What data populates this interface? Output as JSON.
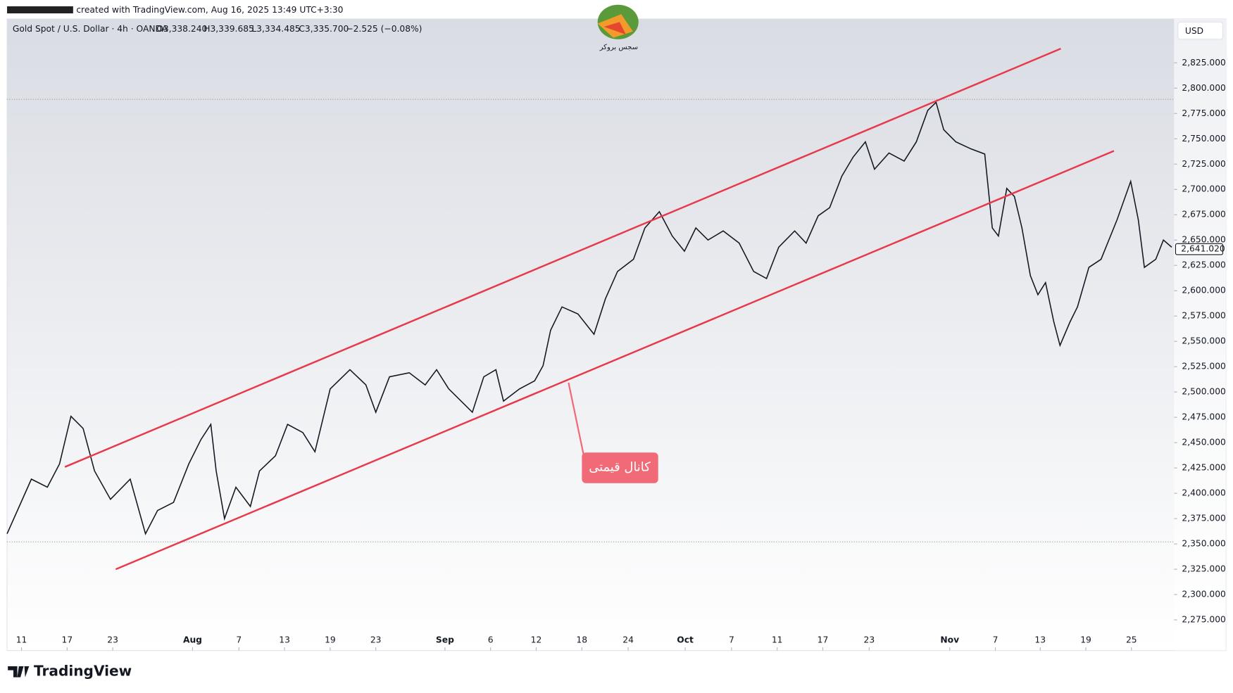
{
  "header": {
    "created": "created with TradingView.com, Aug 16, 2025 13:49 UTC+3:30",
    "brand": "TradingView",
    "logo_text": "سجس بروکر"
  },
  "chart_data": {
    "type": "line",
    "symbol": "Gold Spot / U.S. Dollar · 4h · OANDA",
    "ohlc": [
      "O3,338.240",
      "H3,339.685",
      "L3,334.485",
      "C3,335.700",
      "−2.525 (−0.08%)"
    ],
    "currency": "USD",
    "annotation": "کانال قیمتی",
    "xlim": [
      -1.9,
      151.6
    ],
    "ylim": [
      2244.7,
      2868.4
    ],
    "xticks": [
      {
        "value": 0,
        "label": "11"
      },
      {
        "value": 6,
        "label": "17"
      },
      {
        "value": 12,
        "label": "23"
      },
      {
        "value": 22.5,
        "label": "Aug"
      },
      {
        "value": 28.6,
        "label": "7"
      },
      {
        "value": 34.6,
        "label": "13"
      },
      {
        "value": 40.6,
        "label": "19"
      },
      {
        "value": 46.6,
        "label": "23"
      },
      {
        "value": 55.7,
        "label": "Sep"
      },
      {
        "value": 61.7,
        "label": "6"
      },
      {
        "value": 67.7,
        "label": "12"
      },
      {
        "value": 73.7,
        "label": "18"
      },
      {
        "value": 79.8,
        "label": "24"
      },
      {
        "value": 87.3,
        "label": "Oct"
      },
      {
        "value": 93.4,
        "label": "7"
      },
      {
        "value": 99.4,
        "label": "11"
      },
      {
        "value": 105.4,
        "label": "17"
      },
      {
        "value": 111.5,
        "label": "23"
      },
      {
        "value": 122.1,
        "label": "Nov"
      },
      {
        "value": 128.1,
        "label": "7"
      },
      {
        "value": 134,
        "label": "13"
      },
      {
        "value": 140,
        "label": "19"
      },
      {
        "value": 146,
        "label": "25"
      }
    ],
    "yticks": [
      {
        "value": 2275,
        "label": "2,275.000"
      },
      {
        "value": 2300,
        "label": "2,300.000"
      },
      {
        "value": 2325,
        "label": "2,325.000"
      },
      {
        "value": 2350,
        "label": "2,350.000"
      },
      {
        "value": 2375,
        "label": "2,375.000"
      },
      {
        "value": 2400,
        "label": "2,400.000"
      },
      {
        "value": 2425,
        "label": "2,425.000"
      },
      {
        "value": 2450,
        "label": "2,450.000"
      },
      {
        "value": 2475,
        "label": "2,475.000"
      },
      {
        "value": 2500,
        "label": "2,500.000"
      },
      {
        "value": 2525,
        "label": "2,525.000"
      },
      {
        "value": 2550,
        "label": "2,550.000"
      },
      {
        "value": 2575,
        "label": "2,575.000"
      },
      {
        "value": 2600,
        "label": "2,600.000"
      },
      {
        "value": 2625,
        "label": "2,625.000"
      },
      {
        "value": 2650,
        "label": "2,650.000"
      },
      {
        "value": 2675,
        "label": "2,675.000"
      },
      {
        "value": 2700,
        "label": "2,700.000"
      },
      {
        "value": 2725,
        "label": "2,725.000"
      },
      {
        "value": 2750,
        "label": "2,750.000"
      },
      {
        "value": 2775,
        "label": "2,775.000"
      },
      {
        "value": 2800,
        "label": "2,800.000"
      },
      {
        "value": 2825,
        "label": "2,825.000"
      }
    ],
    "last_price": {
      "value": 2641.02,
      "label": "2,641.020"
    },
    "series": [
      {
        "color": "#131722",
        "x": [
          -1.9,
          1.3,
          3.4,
          5.0,
          6.5,
          8.1,
          9.6,
          11.7,
          14.3,
          16.3,
          17.9,
          20.0,
          22.0,
          23.6,
          24.9,
          25.6,
          26.7,
          28.2,
          30.1,
          31.3,
          33.4,
          35.0,
          37.0,
          38.6,
          40.6,
          43.2,
          45.3,
          46.6,
          48.4,
          51.0,
          53.1,
          54.6,
          56.2,
          59.3,
          60.8,
          62.4,
          63.4,
          65.5,
          67.5,
          68.6,
          69.6,
          71.1,
          73.2,
          75.3,
          76.8,
          78.4,
          80.5,
          82.0,
          83.9,
          85.6,
          87.2,
          88.7,
          90.3,
          92.3,
          94.4,
          96.3,
          98.0,
          99.6,
          101.7,
          103.2,
          104.8,
          106.3,
          107.9,
          109.4,
          111.0,
          112.2,
          114.1,
          116.1,
          117.7,
          119.2,
          120.3,
          121.3,
          122.9,
          124.9,
          126.7,
          127.7,
          128.5,
          129.6,
          130.6,
          131.6,
          132.7,
          133.7,
          134.7,
          135.8,
          136.6,
          137.9,
          138.9,
          140.4,
          142.0,
          144.1,
          145.9,
          146.9,
          147.7,
          149.2,
          150.2,
          151.3
        ],
        "values": [
          2360,
          2414,
          2406,
          2429,
          2476,
          2464,
          2422,
          2394,
          2414,
          2360,
          2383,
          2391,
          2429,
          2453,
          2468,
          2422,
          2375,
          2406,
          2387,
          2422,
          2437,
          2468,
          2460,
          2441,
          2503,
          2522,
          2507,
          2480,
          2515,
          2519,
          2507,
          2522,
          2503,
          2480,
          2515,
          2522,
          2491,
          2503,
          2511,
          2526,
          2561,
          2584,
          2577,
          2557,
          2592,
          2619,
          2631,
          2662,
          2678,
          2654,
          2639,
          2662,
          2650,
          2659,
          2647,
          2619,
          2612,
          2643,
          2659,
          2647,
          2674,
          2682,
          2713,
          2732,
          2747,
          2720,
          2736,
          2728,
          2747,
          2778,
          2786,
          2759,
          2747,
          2740,
          2735,
          2662,
          2654,
          2701,
          2693,
          2662,
          2615,
          2596,
          2608,
          2569,
          2546,
          2569,
          2584,
          2623,
          2631,
          2670,
          2708,
          2670,
          2623,
          2631,
          2650,
          2643
        ]
      }
    ],
    "trendlines": [
      {
        "color": "#e8394a",
        "x": [
          5.7,
          136.7
        ],
        "values": [
          2426,
          2839
        ]
      },
      {
        "color": "#e8394a",
        "x": [
          12.4,
          143.7
        ],
        "values": [
          2325,
          2738
        ]
      }
    ],
    "hlines": [
      2789,
      2352
    ]
  }
}
